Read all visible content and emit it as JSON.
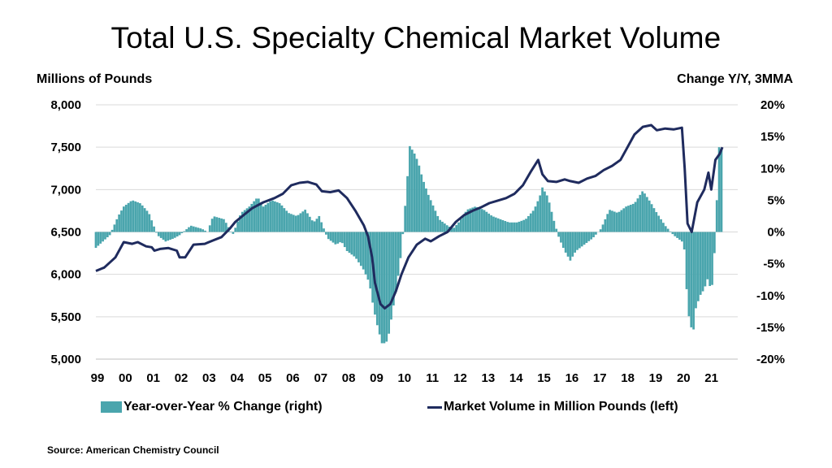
{
  "title": "Total U.S. Specialty Chemical Market Volume",
  "ylabel_left": "Millions of Pounds",
  "ylabel_right": "Change Y/Y, 3MMA",
  "source": "Source: American Chemistry Council",
  "colors": {
    "bars": "#4aa5ad",
    "line": "#1f2b5e",
    "grid": "#d9d9d9"
  },
  "chart_data": {
    "type": "bar+line",
    "title": "Total U.S. Specialty Chemical Market Volume",
    "x_tick_labels": [
      "99",
      "00",
      "01",
      "02",
      "03",
      "04",
      "05",
      "06",
      "07",
      "08",
      "09",
      "10",
      "11",
      "12",
      "13",
      "14",
      "15",
      "16",
      "17",
      "18",
      "19",
      "20",
      "21"
    ],
    "left_axis": {
      "label": "Millions of Pounds",
      "ylim": [
        5000,
        8000
      ],
      "tick_labels": [
        "8,000",
        "7,500",
        "7,000",
        "6,500",
        "6,000",
        "5,500",
        "5,000"
      ]
    },
    "right_axis": {
      "label": "Change Y/Y, 3MMA",
      "ylim": [
        -20,
        20
      ],
      "tick_labels": [
        "20%",
        "15%",
        "10%",
        "5%",
        "0%",
        "-5%",
        "-10%",
        "-15%",
        "-20%"
      ]
    },
    "grid": true,
    "legend_position": "bottom",
    "series": [
      {
        "name": "Year-over-Year % Change (right)",
        "type": "bar",
        "axis": "right",
        "points": [
          [
            1999.0,
            -2.5
          ],
          [
            1999.5,
            -0.5
          ],
          [
            1999.8,
            2.5
          ],
          [
            2000.0,
            4.0
          ],
          [
            2000.3,
            5.0
          ],
          [
            2000.6,
            4.5
          ],
          [
            2000.9,
            3.0
          ],
          [
            2001.2,
            -0.5
          ],
          [
            2001.5,
            -1.5
          ],
          [
            2001.8,
            -1.0
          ],
          [
            2002.0,
            -0.5
          ],
          [
            2002.4,
            1.0
          ],
          [
            2002.8,
            0.5
          ],
          [
            2003.0,
            0.0
          ],
          [
            2003.2,
            2.5
          ],
          [
            2003.6,
            2.0
          ],
          [
            2003.9,
            -0.5
          ],
          [
            2004.2,
            3.0
          ],
          [
            2004.5,
            4.0
          ],
          [
            2004.8,
            5.5
          ],
          [
            2005.0,
            4.0
          ],
          [
            2005.3,
            5.0
          ],
          [
            2005.6,
            4.5
          ],
          [
            2005.9,
            3.0
          ],
          [
            2006.2,
            2.5
          ],
          [
            2006.5,
            3.5
          ],
          [
            2006.8,
            1.5
          ],
          [
            2007.0,
            2.5
          ],
          [
            2007.3,
            -1.0
          ],
          [
            2007.6,
            -2.0
          ],
          [
            2007.8,
            -1.5
          ],
          [
            2008.0,
            -3.0
          ],
          [
            2008.3,
            -4.0
          ],
          [
            2008.6,
            -6.0
          ],
          [
            2008.8,
            -8.0
          ],
          [
            2008.95,
            -12.0
          ],
          [
            2009.1,
            -15.0
          ],
          [
            2009.25,
            -17.5
          ],
          [
            2009.4,
            -17.5
          ],
          [
            2009.5,
            -16.0
          ],
          [
            2009.65,
            -12.0
          ],
          [
            2009.8,
            -8.0
          ],
          [
            2009.95,
            -3.0
          ],
          [
            2010.1,
            5.0
          ],
          [
            2010.25,
            13.5
          ],
          [
            2010.4,
            12.5
          ],
          [
            2010.55,
            11.0
          ],
          [
            2010.7,
            8.5
          ],
          [
            2010.9,
            6.0
          ],
          [
            2011.1,
            4.0
          ],
          [
            2011.3,
            2.0
          ],
          [
            2011.6,
            1.0
          ],
          [
            2011.8,
            0.5
          ],
          [
            2012.0,
            1.5
          ],
          [
            2012.3,
            3.5
          ],
          [
            2012.6,
            4.0
          ],
          [
            2012.9,
            3.5
          ],
          [
            2013.2,
            2.5
          ],
          [
            2013.5,
            2.0
          ],
          [
            2013.8,
            1.5
          ],
          [
            2014.1,
            1.5
          ],
          [
            2014.4,
            2.0
          ],
          [
            2014.7,
            3.5
          ],
          [
            2014.9,
            5.5
          ],
          [
            2015.0,
            7.0
          ],
          [
            2015.2,
            5.5
          ],
          [
            2015.4,
            2.0
          ],
          [
            2015.6,
            -1.0
          ],
          [
            2015.8,
            -3.0
          ],
          [
            2016.0,
            -4.5
          ],
          [
            2016.2,
            -3.0
          ],
          [
            2016.5,
            -2.0
          ],
          [
            2016.8,
            -1.0
          ],
          [
            2017.1,
            0.5
          ],
          [
            2017.4,
            3.5
          ],
          [
            2017.7,
            3.0
          ],
          [
            2018.0,
            4.0
          ],
          [
            2018.3,
            4.5
          ],
          [
            2018.6,
            6.5
          ],
          [
            2018.9,
            4.5
          ],
          [
            2019.1,
            3.0
          ],
          [
            2019.4,
            1.0
          ],
          [
            2019.7,
            -0.5
          ],
          [
            2020.0,
            -1.5
          ],
          [
            2020.1,
            -3.0
          ],
          [
            2020.2,
            -12.0
          ],
          [
            2020.3,
            -14.5
          ],
          [
            2020.4,
            -16.0
          ],
          [
            2020.5,
            -12.0
          ],
          [
            2020.65,
            -10.0
          ],
          [
            2020.8,
            -9.0
          ],
          [
            2020.95,
            -7.0
          ],
          [
            2021.05,
            -10.0
          ],
          [
            2021.15,
            -5.0
          ],
          [
            2021.25,
            5.0
          ],
          [
            2021.35,
            15.0
          ],
          [
            2021.45,
            12.0
          ]
        ]
      },
      {
        "name": "Market Volume in Million Pounds (left)",
        "type": "line",
        "axis": "left",
        "points": [
          [
            1999.0,
            6040
          ],
          [
            1999.3,
            6080
          ],
          [
            1999.7,
            6200
          ],
          [
            2000.0,
            6380
          ],
          [
            2000.3,
            6360
          ],
          [
            2000.5,
            6380
          ],
          [
            2000.8,
            6330
          ],
          [
            2001.0,
            6320
          ],
          [
            2001.1,
            6280
          ],
          [
            2001.3,
            6300
          ],
          [
            2001.6,
            6310
          ],
          [
            2001.9,
            6280
          ],
          [
            2002.0,
            6200
          ],
          [
            2002.2,
            6200
          ],
          [
            2002.5,
            6350
          ],
          [
            2002.9,
            6360
          ],
          [
            2003.2,
            6400
          ],
          [
            2003.5,
            6440
          ],
          [
            2003.8,
            6540
          ],
          [
            2004.0,
            6620
          ],
          [
            2004.3,
            6700
          ],
          [
            2004.6,
            6780
          ],
          [
            2005.0,
            6850
          ],
          [
            2005.4,
            6900
          ],
          [
            2005.7,
            6950
          ],
          [
            2006.0,
            7050
          ],
          [
            2006.3,
            7080
          ],
          [
            2006.6,
            7090
          ],
          [
            2006.9,
            7060
          ],
          [
            2007.1,
            6980
          ],
          [
            2007.4,
            6970
          ],
          [
            2007.7,
            6990
          ],
          [
            2008.0,
            6900
          ],
          [
            2008.3,
            6750
          ],
          [
            2008.6,
            6580
          ],
          [
            2008.75,
            6450
          ],
          [
            2008.9,
            6200
          ],
          [
            2009.0,
            5900
          ],
          [
            2009.2,
            5650
          ],
          [
            2009.35,
            5600
          ],
          [
            2009.55,
            5650
          ],
          [
            2009.75,
            5800
          ],
          [
            2009.95,
            6000
          ],
          [
            2010.2,
            6200
          ],
          [
            2010.5,
            6350
          ],
          [
            2010.8,
            6420
          ],
          [
            2011.0,
            6390
          ],
          [
            2011.3,
            6450
          ],
          [
            2011.6,
            6500
          ],
          [
            2011.9,
            6620
          ],
          [
            2012.2,
            6700
          ],
          [
            2012.5,
            6750
          ],
          [
            2012.8,
            6790
          ],
          [
            2013.1,
            6840
          ],
          [
            2013.4,
            6870
          ],
          [
            2013.7,
            6900
          ],
          [
            2014.0,
            6950
          ],
          [
            2014.3,
            7050
          ],
          [
            2014.6,
            7220
          ],
          [
            2014.85,
            7350
          ],
          [
            2015.0,
            7180
          ],
          [
            2015.2,
            7100
          ],
          [
            2015.5,
            7090
          ],
          [
            2015.8,
            7120
          ],
          [
            2016.0,
            7100
          ],
          [
            2016.3,
            7080
          ],
          [
            2016.6,
            7130
          ],
          [
            2016.9,
            7160
          ],
          [
            2017.2,
            7230
          ],
          [
            2017.5,
            7280
          ],
          [
            2017.8,
            7350
          ],
          [
            2018.0,
            7470
          ],
          [
            2018.3,
            7650
          ],
          [
            2018.6,
            7740
          ],
          [
            2018.9,
            7760
          ],
          [
            2019.1,
            7700
          ],
          [
            2019.4,
            7720
          ],
          [
            2019.7,
            7710
          ],
          [
            2020.0,
            7730
          ],
          [
            2020.1,
            7250
          ],
          [
            2020.2,
            6600
          ],
          [
            2020.35,
            6500
          ],
          [
            2020.55,
            6850
          ],
          [
            2020.8,
            7000
          ],
          [
            2020.95,
            7200
          ],
          [
            2021.05,
            7000
          ],
          [
            2021.2,
            7350
          ],
          [
            2021.35,
            7420
          ],
          [
            2021.45,
            7500
          ]
        ]
      }
    ]
  }
}
